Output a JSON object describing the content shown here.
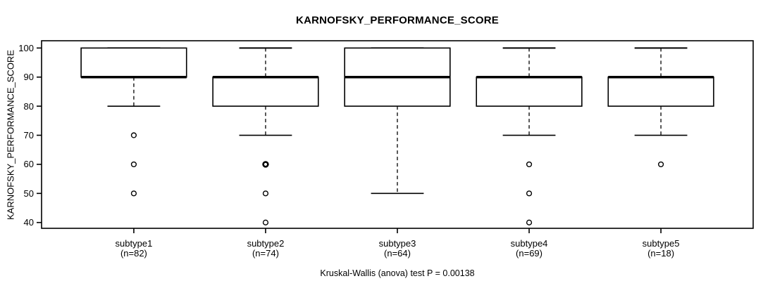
{
  "chart_data": {
    "type": "boxplot",
    "title": "KARNOFSKY_PERFORMANCE_SCORE",
    "xlabel": "",
    "ylabel": "KARNOFSKY_PERFORMANCE_SCORE",
    "caption": "Kruskal-Wallis (anova) test P = 0.00138",
    "ylim": [
      38,
      102.5
    ],
    "yticks": [
      40,
      50,
      60,
      70,
      80,
      90,
      100
    ],
    "grid": false,
    "legend": "none",
    "line_color": "#000000",
    "box_fill": "#ffffff",
    "groups": [
      {
        "label": "subtype1",
        "n": "(n=82)",
        "q1": 90,
        "median": 90,
        "q3": 100,
        "whisker_low": 80,
        "whisker_high": 100,
        "outliers": [
          70,
          60,
          50
        ],
        "bold_outliers": []
      },
      {
        "label": "subtype2",
        "n": "(n=74)",
        "q1": 80,
        "median": 90,
        "q3": 90,
        "whisker_low": 70,
        "whisker_high": 100,
        "outliers": [
          50,
          40
        ],
        "bold_outliers": [
          60
        ]
      },
      {
        "label": "subtype3",
        "n": "(n=64)",
        "q1": 80,
        "median": 90,
        "q3": 100,
        "whisker_low": 50,
        "whisker_high": 100,
        "outliers": [],
        "bold_outliers": []
      },
      {
        "label": "subtype4",
        "n": "(n=69)",
        "q1": 80,
        "median": 90,
        "q3": 90,
        "whisker_low": 70,
        "whisker_high": 100,
        "outliers": [
          60,
          50,
          40
        ],
        "bold_outliers": []
      },
      {
        "label": "subtype5",
        "n": "(n=18)",
        "q1": 80,
        "median": 90,
        "q3": 90,
        "whisker_low": 70,
        "whisker_high": 100,
        "outliers": [
          60
        ],
        "bold_outliers": []
      }
    ]
  }
}
